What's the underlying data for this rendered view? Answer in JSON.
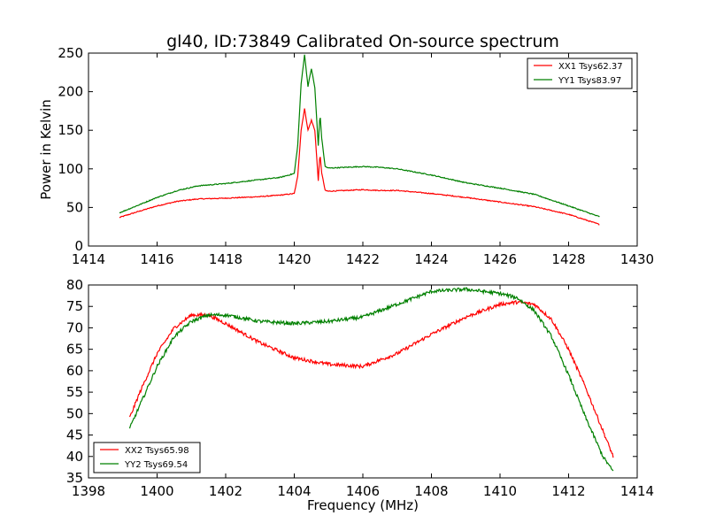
{
  "title": "gl40, ID:73849 Calibrated On-source spectrum",
  "chart_data": [
    {
      "type": "line",
      "ylabel": "Power in Kelvin",
      "xlabel": "",
      "xlim": [
        1414,
        1430
      ],
      "ylim": [
        0,
        250
      ],
      "xticks": [
        "1414",
        "1416",
        "1418",
        "1420",
        "1422",
        "1424",
        "1426",
        "1428",
        "1430"
      ],
      "yticks": [
        "0",
        "50",
        "100",
        "150",
        "200",
        "250"
      ],
      "legend": "top-right",
      "series": [
        {
          "name": "XX1 Tsys62.37",
          "color": "#ff0000",
          "x": [
            1414.9,
            1415.4,
            1416.0,
            1416.6,
            1417.2,
            1418.0,
            1419.0,
            1419.6,
            1420.0,
            1420.1,
            1420.2,
            1420.3,
            1420.4,
            1420.5,
            1420.6,
            1420.7,
            1420.75,
            1420.8,
            1420.9,
            1421.0,
            1421.5,
            1422.0,
            1422.5,
            1423.0,
            1424.0,
            1425.0,
            1426.0,
            1427.0,
            1428.0,
            1428.9
          ],
          "y": [
            37,
            44,
            52,
            58,
            61,
            62,
            64,
            66,
            68,
            90,
            150,
            178,
            150,
            163,
            150,
            85,
            120,
            95,
            72,
            71,
            72,
            73,
            72,
            72,
            68,
            63,
            57,
            51,
            41,
            28
          ]
        },
        {
          "name": "YY1 Tsys83.97",
          "color": "#008000",
          "x": [
            1414.9,
            1415.4,
            1416.0,
            1416.6,
            1417.2,
            1418.0,
            1419.0,
            1419.6,
            1420.0,
            1420.1,
            1420.2,
            1420.3,
            1420.4,
            1420.5,
            1420.6,
            1420.7,
            1420.75,
            1420.8,
            1420.9,
            1421.0,
            1421.5,
            1422.0,
            1422.5,
            1423.0,
            1424.0,
            1425.0,
            1426.0,
            1427.0,
            1428.0,
            1428.9
          ],
          "y": [
            43,
            52,
            63,
            72,
            78,
            81,
            86,
            89,
            94,
            130,
            210,
            248,
            207,
            230,
            205,
            130,
            172,
            140,
            103,
            101,
            102,
            103,
            102,
            100,
            92,
            82,
            75,
            67,
            52,
            38
          ]
        }
      ]
    },
    {
      "type": "line",
      "ylabel": "",
      "xlabel": "Frequency (MHz)",
      "xlim": [
        1398,
        1414
      ],
      "ylim": [
        35,
        80
      ],
      "xticks": [
        "1398",
        "1400",
        "1402",
        "1404",
        "1406",
        "1408",
        "1410",
        "1412",
        "1414"
      ],
      "yticks": [
        "35",
        "40",
        "45",
        "50",
        "55",
        "60",
        "65",
        "70",
        "75",
        "80"
      ],
      "legend": "bottom-left",
      "series": [
        {
          "name": "XX2 Tsys65.98",
          "color": "#ff0000",
          "x": [
            1399.2,
            1399.5,
            1400.0,
            1400.5,
            1401.0,
            1401.5,
            1402.0,
            1403.0,
            1404.0,
            1405.0,
            1406.0,
            1407.0,
            1408.0,
            1409.0,
            1410.0,
            1410.5,
            1411.0,
            1411.5,
            1412.0,
            1412.5,
            1413.0,
            1413.3
          ],
          "y": [
            49,
            55,
            64,
            70,
            73,
            73,
            71,
            66.5,
            63,
            61.5,
            61,
            64,
            68.5,
            72.5,
            75.5,
            76,
            75.5,
            72,
            65,
            56,
            46,
            40
          ]
        },
        {
          "name": "YY2 Tsys69.54",
          "color": "#008000",
          "x": [
            1399.2,
            1399.5,
            1400.0,
            1400.5,
            1401.0,
            1401.5,
            1402.0,
            1403.0,
            1404.0,
            1405.0,
            1406.0,
            1407.0,
            1408.0,
            1409.0,
            1410.0,
            1410.5,
            1411.0,
            1411.5,
            1412.0,
            1412.5,
            1413.0,
            1413.3
          ],
          "y": [
            46.5,
            52,
            61,
            68,
            71.5,
            73,
            73,
            71.5,
            71,
            71.5,
            72.5,
            75.5,
            78.5,
            79,
            78,
            77,
            74,
            68,
            59,
            49,
            40,
            36.5
          ]
        }
      ]
    }
  ]
}
